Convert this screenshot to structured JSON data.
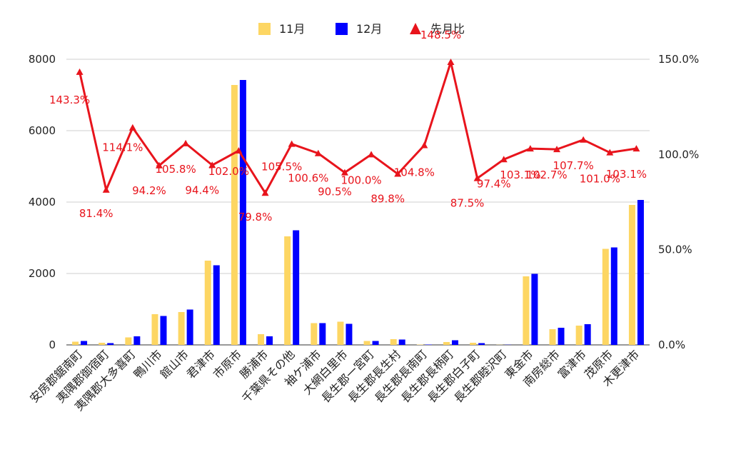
{
  "chart_data": {
    "type": "bar",
    "categories": [
      "安房郡鋸南町",
      "夷隅郡御宿町",
      "夷隅郡大多喜町",
      "鴨川市",
      "館山市",
      "君津市",
      "市原市",
      "勝浦市",
      "千葉県その他",
      "袖ケ浦市",
      "大網白里市",
      "長生郡一宮町",
      "長生郡長生村",
      "長生郡長南町",
      "長生郡長柄町",
      "長生郡白子町",
      "長生郡睦沢町",
      "東金市",
      "南房総市",
      "富津市",
      "茂原市",
      "木更津市"
    ],
    "series": [
      {
        "name": "11月",
        "color": "#fdd663",
        "axis": "left",
        "kind": "bar",
        "values": [
          90,
          60,
          210,
          860,
          920,
          2360,
          7280,
          300,
          3040,
          610,
          650,
          110,
          160,
          10,
          80,
          60,
          5,
          1920,
          440,
          540,
          2690,
          3920
        ]
      },
      {
        "name": "12月",
        "color": "#0000ff",
        "axis": "left",
        "kind": "bar",
        "values": [
          110,
          50,
          240,
          810,
          990,
          2230,
          7420,
          240,
          3210,
          610,
          590,
          110,
          150,
          10,
          130,
          50,
          5,
          1990,
          480,
          580,
          2730,
          4060
        ]
      },
      {
        "name": "先月比",
        "color": "#e8141c",
        "axis": "right",
        "kind": "line",
        "values": [
          1.433,
          0.814,
          1.141,
          0.942,
          1.058,
          0.944,
          1.02,
          0.798,
          1.055,
          1.006,
          0.905,
          1.0,
          0.898,
          1.048,
          1.485,
          0.875,
          0.974,
          1.031,
          1.027,
          1.077,
          1.01,
          1.031
        ],
        "labels": [
          "143.3%",
          "81.4%",
          "114.1%",
          "94.2%",
          "105.8%",
          "94.4%",
          "102.0%",
          "79.8%",
          "105.5%",
          "100.6%",
          "90.5%",
          "100.0%",
          "89.8%",
          "104.8%",
          "148.5%",
          "87.5%",
          "97.4%",
          "103.1%",
          "102.7%",
          "107.7%",
          "101.0%",
          "103.1%"
        ]
      }
    ],
    "y_left": {
      "range": [
        0,
        8000
      ],
      "ticks": [
        "0",
        "2000",
        "4000",
        "6000",
        "8000"
      ]
    },
    "y_right": {
      "range": [
        0,
        1.5
      ],
      "ticks": [
        "0.0%",
        "50.0%",
        "100.0%",
        "150.0%"
      ]
    },
    "grid": true,
    "legend_position": "top-center",
    "title": "",
    "xlabel": "",
    "ylabel": ""
  }
}
